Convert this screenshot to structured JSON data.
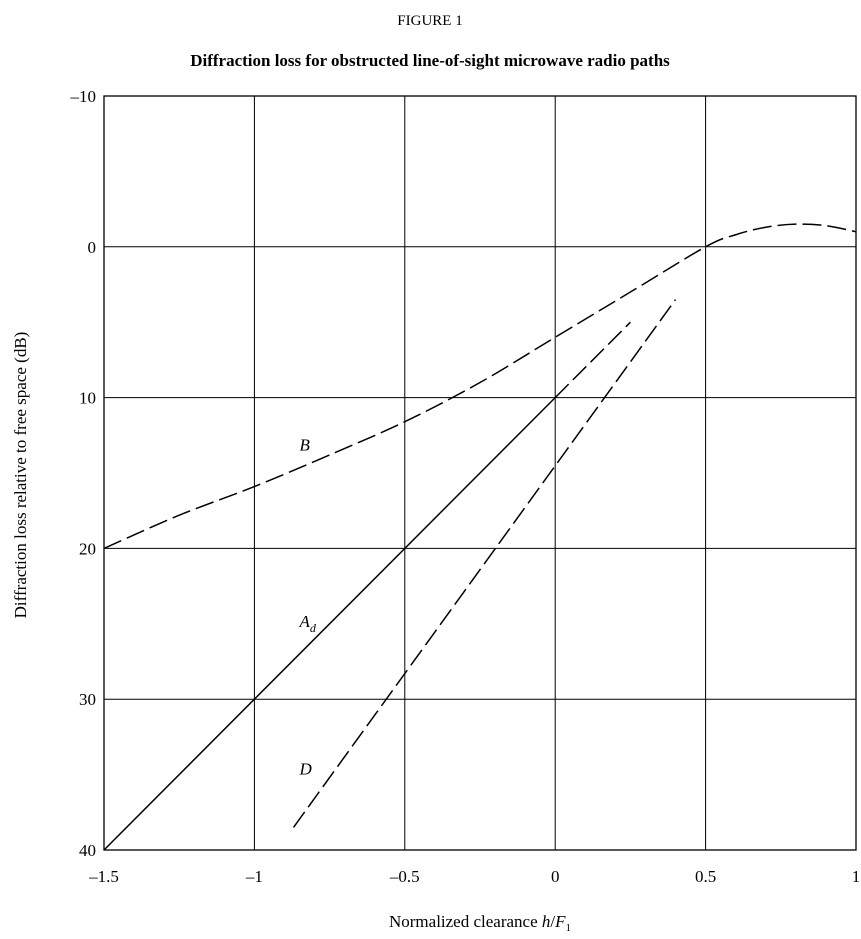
{
  "chart_data": {
    "type": "line",
    "figure_label": "FIGURE 1",
    "title": "Diffraction loss for obstructed line-of-sight microwave radio paths",
    "xlabel": {
      "text": "Normalized clearance ",
      "var": "h",
      "slash": "/",
      "sym": "F",
      "sub": "1"
    },
    "ylabel": "Diffraction loss relative to free space (dB)",
    "xlim": [
      -1.5,
      1
    ],
    "ylim": [
      40,
      -10
    ],
    "y_inverted": true,
    "grid": true,
    "x_ticks": [
      -1.5,
      -1,
      -0.5,
      0,
      0.5,
      1
    ],
    "x_tick_labels": [
      "–1.5",
      "–1",
      "–0.5",
      "0",
      "0.5",
      "1"
    ],
    "y_ticks": [
      -10,
      0,
      10,
      20,
      30,
      40
    ],
    "y_tick_labels": [
      "–10",
      "0",
      "10",
      "20",
      "30",
      "40"
    ],
    "series": [
      {
        "name": "B",
        "style": "dashed",
        "x": [
          -1.5,
          -1.25,
          -1.0,
          -0.75,
          -0.5,
          -0.25,
          0.0,
          0.25,
          0.5,
          0.6,
          0.7,
          0.8,
          0.9,
          1.0
        ],
        "y": [
          20,
          17.8,
          15.9,
          13.8,
          11.6,
          9.0,
          6.0,
          3.0,
          0.0,
          -0.8,
          -1.3,
          -1.5,
          -1.4,
          -1.0
        ],
        "label": {
          "text": "B",
          "sub": "",
          "x": -0.85,
          "y": 13.5
        }
      },
      {
        "name": "A_d",
        "style": "solid",
        "x": [
          -1.5,
          0.0
        ],
        "y": [
          40,
          10
        ],
        "label": {
          "text": "A",
          "sub": "d",
          "x": -0.85,
          "y": 25.2
        }
      },
      {
        "name": "A_d extension",
        "style": "dashed",
        "x": [
          0.0,
          0.25
        ],
        "y": [
          10,
          5
        ],
        "label": null
      },
      {
        "name": "D",
        "style": "dashed",
        "x": [
          -0.87,
          0.4
        ],
        "y": [
          38.5,
          3.5
        ],
        "label": {
          "text": "D",
          "sub": "",
          "x": -0.85,
          "y": 35.0
        }
      }
    ]
  }
}
